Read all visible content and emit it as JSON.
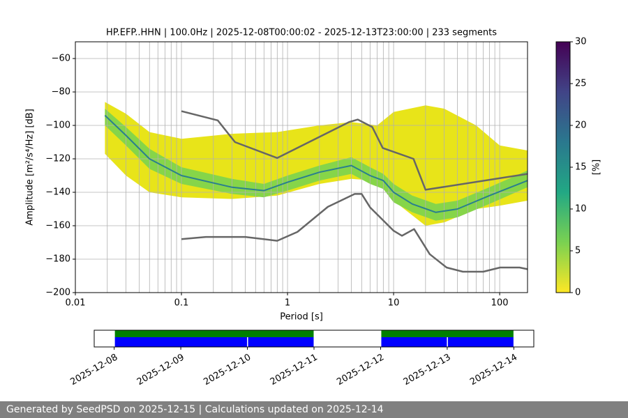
{
  "chart_data": [
    {
      "type": "ppsd",
      "title": "HP.EFP..HHN | 100.0Hz | 2025-12-08T00:00:02 - 2025-12-13T23:00:00 | 233 segments",
      "x_label": "Period [s]",
      "y_label": "Amplitude [m²/s⁴/Hz] [dB]",
      "log_x": true,
      "grid": true,
      "xlim": [
        0.01,
        183
      ],
      "ylim": [
        -200,
        -50
      ],
      "xticks": [
        0.01,
        0.1,
        1,
        10,
        100
      ],
      "xminor": [
        0.02,
        0.03,
        0.04,
        0.05,
        0.06,
        0.07,
        0.08,
        0.09,
        0.2,
        0.3,
        0.4,
        0.5,
        0.6,
        0.7,
        0.8,
        0.9,
        2,
        3,
        4,
        5,
        6,
        7,
        8,
        9,
        20,
        30,
        40,
        50,
        60,
        70,
        80,
        90
      ],
      "yticks": [
        {
          "value": -200,
          "label": "−200"
        },
        {
          "value": -180,
          "label": "−180"
        },
        {
          "value": -160,
          "label": "−160"
        },
        {
          "value": -140,
          "label": "−140"
        },
        {
          "value": -120,
          "label": "−120"
        },
        {
          "value": -100,
          "label": "−100"
        },
        {
          "value": -80,
          "label": "−80"
        },
        {
          "value": -60,
          "label": "−60"
        }
      ],
      "band": [
        {
          "color": "#e8e419",
          "x": [
            0.019,
            0.03,
            0.05,
            0.1,
            0.3,
            0.8,
            2,
            4,
            7,
            10,
            20,
            30,
            60,
            100,
            183
          ],
          "low": [
            -117,
            -130,
            -140,
            -143,
            -144,
            -142,
            -135,
            -132,
            -133,
            -145,
            -160,
            -158,
            -150,
            -148,
            -145
          ],
          "high": [
            -86,
            -93,
            -104,
            -108,
            -105,
            -104,
            -100,
            -98,
            -100,
            -92,
            -88,
            -90,
            -100,
            -112,
            -115
          ]
        },
        {
          "color": "#86d549",
          "x": [
            0.019,
            0.03,
            0.05,
            0.1,
            0.3,
            0.6,
            1,
            2,
            4,
            6,
            8,
            10,
            15,
            25,
            40,
            80,
            183
          ],
          "low": [
            -100,
            -112,
            -126,
            -135,
            -141,
            -143,
            -139,
            -133,
            -129,
            -135,
            -138,
            -146,
            -152,
            -157,
            -155,
            -147,
            -137
          ],
          "high": [
            -90,
            -101,
            -114,
            -125,
            -132,
            -135,
            -130,
            -124,
            -119,
            -125,
            -129,
            -135,
            -142,
            -147,
            -145,
            -137,
            -127
          ]
        }
      ],
      "series": [
        {
          "color": "#2a7f8e",
          "width": 2,
          "x": [
            0.019,
            0.03,
            0.05,
            0.1,
            0.3,
            0.6,
            1,
            2,
            4,
            6,
            8,
            10,
            15,
            25,
            40,
            80,
            183
          ],
          "values": [
            -94,
            -106,
            -120,
            -130,
            -137,
            -139,
            -134,
            -128,
            -124,
            -130,
            -133,
            -140,
            -147,
            -152,
            -150,
            -142,
            -133
          ]
        },
        {
          "color": "#666666",
          "width": 2.5,
          "x": [
            0.1,
            0.22,
            0.32,
            0.8,
            3.8,
            4.6,
            6.3,
            7.9,
            15.4,
            20,
            183
          ],
          "values": [
            -91.5,
            -97,
            -110,
            -119.5,
            -98,
            -96.5,
            -101,
            -113.5,
            -120,
            -138.5,
            -129
          ]
        },
        {
          "color": "#666666",
          "width": 2.5,
          "x": [
            0.1,
            0.17,
            0.4,
            0.8,
            1.24,
            2.4,
            4.3,
            5,
            6,
            10,
            12,
            15.6,
            21.9,
            31.6,
            45,
            70,
            101,
            154,
            183
          ],
          "values": [
            -168,
            -166.7,
            -166.7,
            -169,
            -163.7,
            -148.7,
            -141,
            -141,
            -149,
            -163,
            -166,
            -162,
            -177,
            -185,
            -187.5,
            -187.5,
            -185,
            -185,
            -186
          ]
        }
      ],
      "colorbar": {
        "label": "[%]",
        "zlim": [
          0,
          30
        ],
        "zticks": [
          0,
          5,
          10,
          15,
          20,
          25,
          30
        ],
        "colormap": [
          "#fde725",
          "#7ad151",
          "#22a884",
          "#2a788e",
          "#414487",
          "#440154"
        ]
      }
    },
    {
      "type": "timeline",
      "categories": [
        "2025-12-08",
        "2025-12-09",
        "2025-12-10",
        "2025-12-11",
        "2025-12-12",
        "2025-12-13",
        "2025-12-14"
      ],
      "segments": [
        {
          "start": "2025-12-08",
          "end": "2025-12-11",
          "color": "#008000",
          "row": 0
        },
        {
          "start": "2025-12-12",
          "end": "2025-12-14",
          "color": "#008000",
          "row": 0
        },
        {
          "start": "2025-12-08",
          "end": "2025-12-10",
          "color": "#0000ff",
          "row": 1
        },
        {
          "start": "2025-12-10",
          "end": "2025-12-11",
          "color": "#0000ff",
          "row": 1
        },
        {
          "start": "2025-12-12",
          "end": "2025-12-13",
          "color": "#0000ff",
          "row": 1
        },
        {
          "start": "2025-12-13",
          "end": "2025-12-14",
          "color": "#0000ff",
          "row": 1
        }
      ]
    }
  ],
  "footer": "Generated by SeedPSD on 2025-12-15 | Calculations updated on 2025-12-14"
}
